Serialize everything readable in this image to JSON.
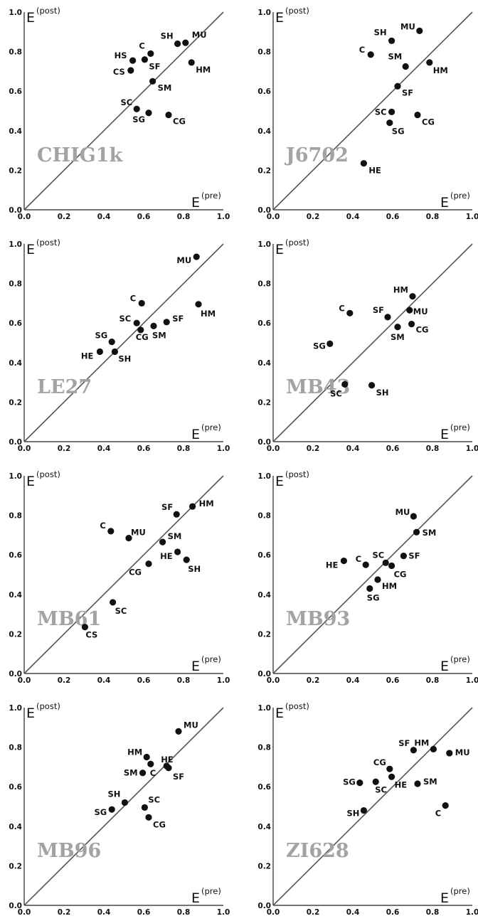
{
  "chart_data": [
    {
      "type": "scatter",
      "panel_title": "CHIG1k",
      "xlabel": "E",
      "xlabel_sup": "(pre)",
      "ylabel": "E",
      "ylabel_sup": "(post)",
      "xlim": [
        0,
        1
      ],
      "ylim": [
        0,
        1
      ],
      "ticks": [
        "0.0",
        "0.2",
        "0.4",
        "0.6",
        "0.8",
        "1.0"
      ],
      "diagonal": true,
      "points": [
        {
          "label": "MU",
          "x": 0.81,
          "y": 0.845
        },
        {
          "label": "SH",
          "x": 0.77,
          "y": 0.84
        },
        {
          "label": "C",
          "x": 0.635,
          "y": 0.79
        },
        {
          "label": "HS",
          "x": 0.545,
          "y": 0.755
        },
        {
          "label": "SF",
          "x": 0.605,
          "y": 0.76
        },
        {
          "label": "CS",
          "x": 0.535,
          "y": 0.705
        },
        {
          "label": "HM",
          "x": 0.84,
          "y": 0.745
        },
        {
          "label": "SM",
          "x": 0.645,
          "y": 0.65
        },
        {
          "label": "SC",
          "x": 0.565,
          "y": 0.51
        },
        {
          "label": "SG",
          "x": 0.625,
          "y": 0.49
        },
        {
          "label": "CG",
          "x": 0.725,
          "y": 0.48
        }
      ]
    },
    {
      "type": "scatter",
      "panel_title": "J6702",
      "xlabel": "E",
      "xlabel_sup": "(pre)",
      "ylabel": "E",
      "ylabel_sup": "(post)",
      "xlim": [
        0,
        1
      ],
      "ylim": [
        0,
        1
      ],
      "ticks": [
        "0.0",
        "0.2",
        "0.4",
        "0.6",
        "0.8",
        "1.0"
      ],
      "diagonal": true,
      "points": [
        {
          "label": "MU",
          "x": 0.735,
          "y": 0.905
        },
        {
          "label": "SH",
          "x": 0.595,
          "y": 0.855
        },
        {
          "label": "C",
          "x": 0.49,
          "y": 0.785
        },
        {
          "label": "HM",
          "x": 0.785,
          "y": 0.745
        },
        {
          "label": "SM",
          "x": 0.665,
          "y": 0.725
        },
        {
          "label": "SF",
          "x": 0.625,
          "y": 0.625
        },
        {
          "label": "SC",
          "x": 0.595,
          "y": 0.495
        },
        {
          "label": "SG",
          "x": 0.585,
          "y": 0.44
        },
        {
          "label": "CG",
          "x": 0.725,
          "y": 0.48
        },
        {
          "label": "HE",
          "x": 0.455,
          "y": 0.235
        }
      ]
    },
    {
      "type": "scatter",
      "panel_title": "LE27",
      "xlabel": "E",
      "xlabel_sup": "(pre)",
      "ylabel": "E",
      "ylabel_sup": "(post)",
      "xlim": [
        0,
        1
      ],
      "ylim": [
        0,
        1
      ],
      "ticks": [
        "0.0",
        "0.2",
        "0.4",
        "0.6",
        "0.8",
        "1.0"
      ],
      "diagonal": true,
      "points": [
        {
          "label": "MU",
          "x": 0.865,
          "y": 0.935
        },
        {
          "label": "C",
          "x": 0.59,
          "y": 0.7
        },
        {
          "label": "HM",
          "x": 0.875,
          "y": 0.695
        },
        {
          "label": "SC",
          "x": 0.565,
          "y": 0.6
        },
        {
          "label": "SF",
          "x": 0.715,
          "y": 0.605
        },
        {
          "label": "SM",
          "x": 0.65,
          "y": 0.585
        },
        {
          "label": "CG",
          "x": 0.585,
          "y": 0.565
        },
        {
          "label": "SG",
          "x": 0.44,
          "y": 0.505
        },
        {
          "label": "HE",
          "x": 0.38,
          "y": 0.455
        },
        {
          "label": "SH",
          "x": 0.455,
          "y": 0.455
        }
      ]
    },
    {
      "type": "scatter",
      "panel_title": "MB43",
      "xlabel": "E",
      "xlabel_sup": "(pre)",
      "ylabel": "E",
      "ylabel_sup": "(post)",
      "xlim": [
        0,
        1
      ],
      "ylim": [
        0,
        1
      ],
      "ticks": [
        "0.0",
        "0.2",
        "0.4",
        "0.6",
        "0.8",
        "1.0"
      ],
      "diagonal": true,
      "points": [
        {
          "label": "HM",
          "x": 0.7,
          "y": 0.735
        },
        {
          "label": "MU",
          "x": 0.685,
          "y": 0.665
        },
        {
          "label": "C",
          "x": 0.385,
          "y": 0.65
        },
        {
          "label": "SF",
          "x": 0.575,
          "y": 0.63
        },
        {
          "label": "CG",
          "x": 0.695,
          "y": 0.595
        },
        {
          "label": "SM",
          "x": 0.625,
          "y": 0.58
        },
        {
          "label": "SG",
          "x": 0.285,
          "y": 0.495
        },
        {
          "label": "SC",
          "x": 0.36,
          "y": 0.29
        },
        {
          "label": "SH",
          "x": 0.495,
          "y": 0.285
        }
      ]
    },
    {
      "type": "scatter",
      "panel_title": "MB61",
      "xlabel": "E",
      "xlabel_sup": "(pre)",
      "ylabel": "E",
      "ylabel_sup": "(post)",
      "xlim": [
        0,
        1
      ],
      "ylim": [
        0,
        1
      ],
      "ticks": [
        "0.0",
        "0.2",
        "0.4",
        "0.6",
        "0.8",
        "1.0"
      ],
      "diagonal": true,
      "points": [
        {
          "label": "HM",
          "x": 0.845,
          "y": 0.845
        },
        {
          "label": "SF",
          "x": 0.765,
          "y": 0.805
        },
        {
          "label": "C",
          "x": 0.435,
          "y": 0.72
        },
        {
          "label": "MU",
          "x": 0.525,
          "y": 0.685
        },
        {
          "label": "SM",
          "x": 0.695,
          "y": 0.665
        },
        {
          "label": "HE",
          "x": 0.77,
          "y": 0.615
        },
        {
          "label": "SH",
          "x": 0.815,
          "y": 0.575
        },
        {
          "label": "CG",
          "x": 0.625,
          "y": 0.555
        },
        {
          "label": "SC",
          "x": 0.445,
          "y": 0.36
        },
        {
          "label": "CS",
          "x": 0.305,
          "y": 0.235
        }
      ]
    },
    {
      "type": "scatter",
      "panel_title": "MB93",
      "xlabel": "E",
      "xlabel_sup": "(pre)",
      "ylabel": "E",
      "ylabel_sup": "(post)",
      "xlim": [
        0,
        1
      ],
      "ylim": [
        0,
        1
      ],
      "ticks": [
        "0.0",
        "0.2",
        "0.4",
        "0.6",
        "0.8",
        "1.0"
      ],
      "diagonal": true,
      "points": [
        {
          "label": "MU",
          "x": 0.705,
          "y": 0.795
        },
        {
          "label": "SM",
          "x": 0.72,
          "y": 0.715
        },
        {
          "label": "SF",
          "x": 0.655,
          "y": 0.595
        },
        {
          "label": "HE",
          "x": 0.355,
          "y": 0.57
        },
        {
          "label": "C",
          "x": 0.465,
          "y": 0.55
        },
        {
          "label": "SC",
          "x": 0.565,
          "y": 0.56
        },
        {
          "label": "CG",
          "x": 0.595,
          "y": 0.545
        },
        {
          "label": "HM",
          "x": 0.525,
          "y": 0.475
        },
        {
          "label": "SG",
          "x": 0.485,
          "y": 0.43
        }
      ]
    },
    {
      "type": "scatter",
      "panel_title": "MB96",
      "xlabel": "E",
      "xlabel_sup": "(pre)",
      "ylabel": "E",
      "ylabel_sup": "(post)",
      "xlim": [
        0,
        1
      ],
      "ylim": [
        0,
        1
      ],
      "ticks": [
        "0.0",
        "0.2",
        "0.4",
        "0.6",
        "0.8",
        "1.0"
      ],
      "diagonal": true,
      "points": [
        {
          "label": "MU",
          "x": 0.775,
          "y": 0.88
        },
        {
          "label": "HM",
          "x": 0.615,
          "y": 0.75
        },
        {
          "label": "HE",
          "x": 0.715,
          "y": 0.705
        },
        {
          "label": "C",
          "x": 0.635,
          "y": 0.715
        },
        {
          "label": "SF",
          "x": 0.725,
          "y": 0.695
        },
        {
          "label": "SM",
          "x": 0.595,
          "y": 0.67
        },
        {
          "label": "SH",
          "x": 0.505,
          "y": 0.52
        },
        {
          "label": "SG",
          "x": 0.44,
          "y": 0.485
        },
        {
          "label": "SC",
          "x": 0.605,
          "y": 0.495
        },
        {
          "label": "CG",
          "x": 0.625,
          "y": 0.445
        }
      ]
    },
    {
      "type": "scatter",
      "panel_title": "ZI628",
      "xlabel": "E",
      "xlabel_sup": "(pre)",
      "ylabel": "E",
      "ylabel_sup": "(post)",
      "xlim": [
        0,
        1
      ],
      "ylim": [
        0,
        1
      ],
      "ticks": [
        "0.0",
        "0.2",
        "0.4",
        "0.6",
        "0.8",
        "1.0"
      ],
      "diagonal": true,
      "points": [
        {
          "label": "SF",
          "x": 0.705,
          "y": 0.785
        },
        {
          "label": "HM",
          "x": 0.805,
          "y": 0.79
        },
        {
          "label": "MU",
          "x": 0.885,
          "y": 0.77
        },
        {
          "label": "CG",
          "x": 0.585,
          "y": 0.69
        },
        {
          "label": "HE",
          "x": 0.595,
          "y": 0.65
        },
        {
          "label": "SG",
          "x": 0.435,
          "y": 0.62
        },
        {
          "label": "SC",
          "x": 0.515,
          "y": 0.625
        },
        {
          "label": "SM",
          "x": 0.725,
          "y": 0.615
        },
        {
          "label": "C",
          "x": 0.865,
          "y": 0.505
        },
        {
          "label": "SH",
          "x": 0.455,
          "y": 0.48
        }
      ]
    }
  ]
}
